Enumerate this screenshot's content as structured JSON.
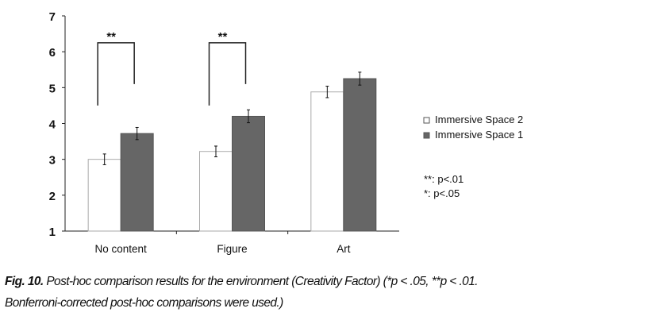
{
  "chart_data": {
    "type": "bar",
    "categories": [
      "No content",
      "Figure",
      "Art"
    ],
    "series": [
      {
        "name": "Immersive Space 2",
        "values": [
          3.0,
          3.22,
          4.88
        ],
        "errors": [
          0.15,
          0.15,
          0.16
        ],
        "color": "#ffffff"
      },
      {
        "name": "Immersive Space 1",
        "values": [
          3.72,
          4.2,
          5.25
        ],
        "errors": [
          0.17,
          0.18,
          0.18
        ],
        "color": "#666666"
      }
    ],
    "ylim": [
      1,
      7
    ],
    "yticks": [
      "1",
      "2",
      "3",
      "4",
      "5",
      "6",
      "7"
    ],
    "grid": false,
    "legend_placement": "right",
    "significance": [
      {
        "category": "No content",
        "label": "**"
      },
      {
        "category": "Figure",
        "label": "**"
      }
    ],
    "notes": [
      "**: p<.01",
      "*: p<.05"
    ]
  },
  "caption": {
    "label": "Fig. 10.",
    "text": " Post-hoc comparison results for the environment (Creativity Factor) (*p < .05, **p < .01.",
    "line2": "Bonferroni-corrected post-hoc comparisons were used.)"
  }
}
